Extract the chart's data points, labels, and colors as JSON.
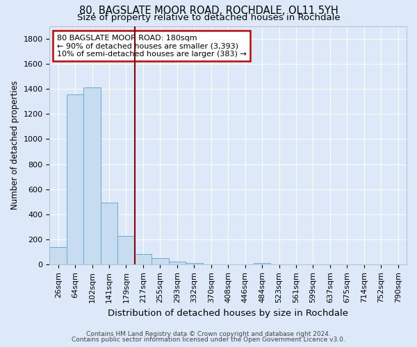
{
  "title1": "80, BAGSLATE MOOR ROAD, ROCHDALE, OL11 5YH",
  "title2": "Size of property relative to detached houses in Rochdale",
  "xlabel": "Distribution of detached houses by size in Rochdale",
  "ylabel": "Number of detached properties",
  "footnote1": "Contains HM Land Registry data © Crown copyright and database right 2024.",
  "footnote2": "Contains public sector information licensed under the Open Government Licence v3.0.",
  "categories": [
    "26sqm",
    "64sqm",
    "102sqm",
    "141sqm",
    "179sqm",
    "217sqm",
    "255sqm",
    "293sqm",
    "332sqm",
    "370sqm",
    "408sqm",
    "446sqm",
    "484sqm",
    "523sqm",
    "561sqm",
    "599sqm",
    "637sqm",
    "675sqm",
    "714sqm",
    "752sqm",
    "790sqm"
  ],
  "values": [
    140,
    1355,
    1410,
    495,
    230,
    85,
    50,
    25,
    14,
    0,
    0,
    0,
    14,
    0,
    0,
    0,
    0,
    0,
    0,
    0,
    0
  ],
  "bar_color": "#c8dcf0",
  "bar_edge_color": "#6aaad4",
  "vline_x": 4.5,
  "vline_color": "#8b0000",
  "annotation_line1": "80 BAGSLATE MOOR ROAD: 180sqm",
  "annotation_line2": "← 90% of detached houses are smaller (3,393)",
  "annotation_line3": "10% of semi-detached houses are larger (383) →",
  "annotation_box_color": "#ffffff",
  "annotation_box_edge": "#cc0000",
  "ylim": [
    0,
    1900
  ],
  "yticks": [
    0,
    200,
    400,
    600,
    800,
    1000,
    1200,
    1400,
    1600,
    1800
  ],
  "bg_color": "#dde8f8",
  "plot_bg_color": "#dde8f8",
  "grid_color": "#ffffff",
  "title1_fontsize": 10.5,
  "title2_fontsize": 9.5,
  "xlabel_fontsize": 9.5,
  "ylabel_fontsize": 8.5,
  "tick_fontsize": 8,
  "annot_fontsize": 8,
  "footnote_fontsize": 6.5
}
